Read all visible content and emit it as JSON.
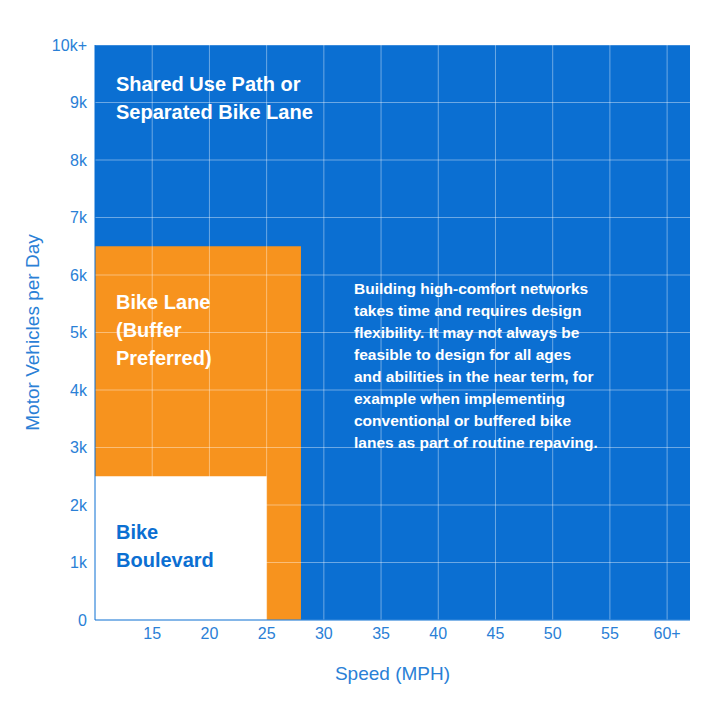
{
  "chart_data": {
    "type": "area",
    "line_style": "step",
    "x_label": "Speed (MPH)",
    "y_label": "Motor Vehicles per Day",
    "annotation": "Building high-comfort networks takes time and requires design flexibility. It may not always be feasible to design for all ages and abilities in the near term, for example when implementing conventional or buffered bike lanes as part of routine repaving.",
    "x": [
      10,
      25,
      28,
      62
    ],
    "series": [
      {
        "name": "Shared Use Path or Separated Bike Lane",
        "color": "#0b6fd2",
        "values": [
          10000,
          10000,
          10000,
          10000
        ]
      },
      {
        "name": "Bike Lane (Buffer Preferred)",
        "color": "#f7931e",
        "values": [
          6500,
          6500,
          0,
          0
        ]
      },
      {
        "name": "Bike Boulevard",
        "color": "#ffffff",
        "values": [
          2500,
          0,
          0,
          0
        ]
      }
    ],
    "xlim": [
      10,
      62
    ],
    "xticks": [
      15,
      20,
      25,
      30,
      35,
      40,
      45,
      50,
      55,
      {
        "value": 60,
        "label": "60+"
      }
    ],
    "ylim": [
      0,
      10000
    ],
    "yticks": [
      0,
      {
        "value": 1000,
        "label": "1k"
      },
      {
        "value": 2000,
        "label": "2k"
      },
      {
        "value": 3000,
        "label": "3k"
      },
      {
        "value": 4000,
        "label": "4k"
      },
      {
        "value": 5000,
        "label": "5k"
      },
      {
        "value": 6000,
        "label": "6k"
      },
      {
        "value": 7000,
        "label": "7k"
      },
      {
        "value": 8000,
        "label": "8k"
      },
      {
        "value": 9000,
        "label": "9k"
      },
      {
        "value": 10000,
        "label": "10k+"
      }
    ],
    "grid": true
  }
}
